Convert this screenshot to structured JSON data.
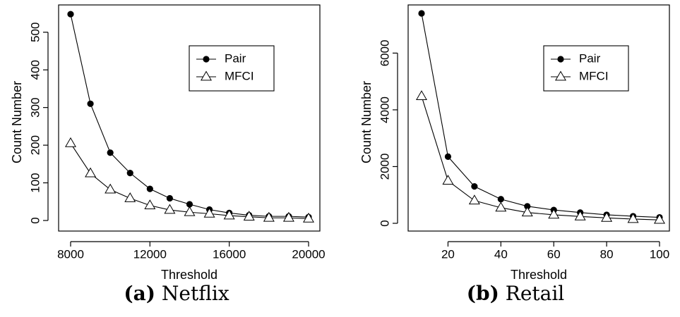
{
  "chart_data": [
    {
      "type": "line",
      "panel_tag": "(a)",
      "panel_name": "Netflix",
      "xlabel": "Threshold",
      "ylabel": "Count Number",
      "xlim": [
        8000,
        20000
      ],
      "ylim": [
        0,
        550
      ],
      "x_ticks": [
        8000,
        12000,
        16000,
        20000
      ],
      "y_ticks": [
        0,
        100,
        200,
        300,
        400,
        500
      ],
      "x": [
        8000,
        9000,
        10000,
        11000,
        12000,
        13000,
        14000,
        15000,
        16000,
        17000,
        18000,
        19000,
        20000
      ],
      "series": [
        {
          "name": "Pair",
          "marker": "filled-circle",
          "values": [
            548,
            310,
            180,
            126,
            84,
            59,
            43,
            29,
            20,
            14,
            11,
            11,
            9
          ]
        },
        {
          "name": "MFCI",
          "marker": "open-triangle",
          "values": [
            205,
            125,
            82,
            59,
            40,
            28,
            22,
            18,
            13,
            10,
            7,
            7,
            5
          ]
        }
      ],
      "legend_position": "top-right",
      "grid": false
    },
    {
      "type": "line",
      "panel_tag": "(b)",
      "panel_name": "Retail",
      "xlabel": "Threshold",
      "ylabel": "Count Number",
      "xlim": [
        10,
        100
      ],
      "ylim": [
        0,
        7400
      ],
      "x_ticks": [
        20,
        40,
        60,
        80,
        100
      ],
      "y_ticks": [
        0,
        2000,
        4000,
        6000
      ],
      "x": [
        10,
        20,
        30,
        40,
        50,
        60,
        70,
        80,
        90,
        100
      ],
      "series": [
        {
          "name": "Pair",
          "marker": "filled-circle",
          "values": [
            7400,
            2350,
            1300,
            850,
            600,
            470,
            380,
            300,
            250,
            210
          ]
        },
        {
          "name": "MFCI",
          "marker": "open-triangle",
          "values": [
            4480,
            1500,
            800,
            550,
            380,
            300,
            240,
            190,
            150,
            120
          ]
        }
      ],
      "legend_position": "top-right",
      "grid": false
    }
  ]
}
